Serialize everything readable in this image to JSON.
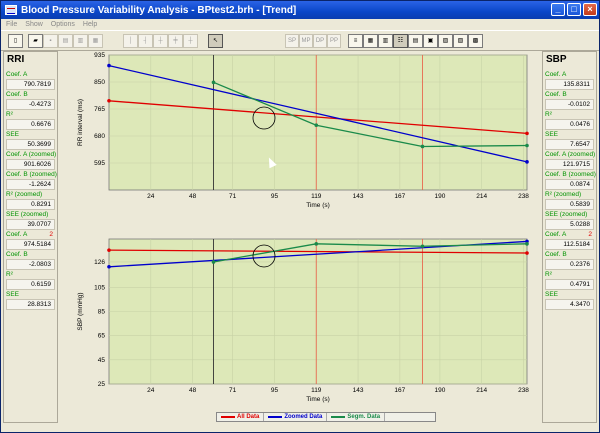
{
  "window": {
    "title": "Blood Pressure Variability Analysis - BPtest2.brh - [Trend]"
  },
  "menu": [
    "File",
    "Show",
    "Options",
    "Help"
  ],
  "toolbar": {
    "sp": "SP",
    "mp": "MP",
    "dp": "DP",
    "pp": "PP"
  },
  "left_panel": {
    "title": "RRI",
    "fields": [
      {
        "label": "Coef. A",
        "value": "790.7819"
      },
      {
        "label": "Coef. B",
        "value": "-0.4273"
      },
      {
        "label": "R²",
        "value": "0.6676"
      },
      {
        "label": "SEE",
        "value": "50.3699"
      },
      {
        "label": "Coef. A (zoomed)",
        "value": "901.6026"
      },
      {
        "label": "Coef. B (zoomed)",
        "value": "-1.2624"
      },
      {
        "label": "R² (zoomed)",
        "value": "0.8291"
      },
      {
        "label": "SEE (zoomed)",
        "value": "39.0707"
      },
      {
        "label": "Coef. A",
        "marker": "2",
        "value": "974.5184"
      },
      {
        "label": "Coef. B",
        "value": "-2.0803"
      },
      {
        "label": "R²",
        "value": "0.6159"
      },
      {
        "label": "SEE",
        "value": "28.8313"
      }
    ]
  },
  "right_panel": {
    "title": "SBP",
    "fields": [
      {
        "label": "Coef. A",
        "value": "135.8311"
      },
      {
        "label": "Coef. B",
        "value": "-0.0102"
      },
      {
        "label": "R²",
        "value": "0.0476"
      },
      {
        "label": "SEE",
        "value": "7.6547"
      },
      {
        "label": "Coef. A (zoomed)",
        "value": "121.9715"
      },
      {
        "label": "Coef. B (zoomed)",
        "value": "0.0874"
      },
      {
        "label": "R² (zoomed)",
        "value": "0.5839"
      },
      {
        "label": "SEE (zoomed)",
        "value": "5.0288"
      },
      {
        "label": "Coef. A",
        "marker": "2",
        "value": "112.5184"
      },
      {
        "label": "Coef. B",
        "value": "0.2376"
      },
      {
        "label": "R²",
        "value": "0.4791"
      },
      {
        "label": "SEE",
        "value": "4.3470"
      }
    ]
  },
  "legend": [
    {
      "label": "All Data",
      "color": "#e00000"
    },
    {
      "label": "Zoomed Data",
      "color": "#0000cc"
    },
    {
      "label": "Segm. Data",
      "color": "#1a8a4a"
    }
  ],
  "chart_data": [
    {
      "type": "line",
      "ylabel": "RR interval (ms)",
      "xlabel": "Time (s)",
      "xlim": [
        0,
        240
      ],
      "ylim": [
        510,
        935
      ],
      "xticks": [
        24,
        48,
        71,
        95,
        119,
        143,
        167,
        190,
        214,
        238
      ],
      "yticks": [
        595,
        680,
        765,
        850,
        935
      ],
      "vlines": [
        {
          "x": 60,
          "color": "#333333"
        },
        {
          "x": 119,
          "color": "#e86a50"
        },
        {
          "x": 180,
          "color": "#e86a50"
        }
      ],
      "series": [
        {
          "name": "All Data",
          "color": "#e00000",
          "x": [
            0,
            240
          ],
          "y": [
            790.8,
            688.2
          ]
        },
        {
          "name": "Zoomed Data",
          "color": "#0000cc",
          "x": [
            0,
            240
          ],
          "y": [
            901.6,
            598.6
          ]
        },
        {
          "name": "Segm. Data",
          "color": "#1a8a4a",
          "x": [
            60,
            119,
            180,
            240
          ],
          "y": [
            849,
            714,
            647,
            650
          ]
        }
      ]
    },
    {
      "type": "line",
      "ylabel": "SBP (mmHg)",
      "xlabel": "Time (s)",
      "xlim": [
        0,
        240
      ],
      "ylim": [
        25,
        145
      ],
      "xticks": [
        24,
        48,
        71,
        95,
        119,
        143,
        167,
        190,
        214,
        238
      ],
      "yticks": [
        25,
        45,
        65,
        85,
        105,
        126
      ],
      "vlines": [
        {
          "x": 60,
          "color": "#333333"
        },
        {
          "x": 119,
          "color": "#e86a50"
        },
        {
          "x": 180,
          "color": "#e86a50"
        }
      ],
      "series": [
        {
          "name": "All Data",
          "color": "#e00000",
          "x": [
            0,
            240
          ],
          "y": [
            135.8,
            133.4
          ]
        },
        {
          "name": "Zoomed Data",
          "color": "#0000cc",
          "x": [
            0,
            240
          ],
          "y": [
            122,
            143
          ]
        },
        {
          "name": "Segm. Data",
          "color": "#1a8a4a",
          "x": [
            60,
            119,
            180,
            240
          ],
          "y": [
            126,
            141,
            139,
            141
          ]
        }
      ]
    }
  ]
}
